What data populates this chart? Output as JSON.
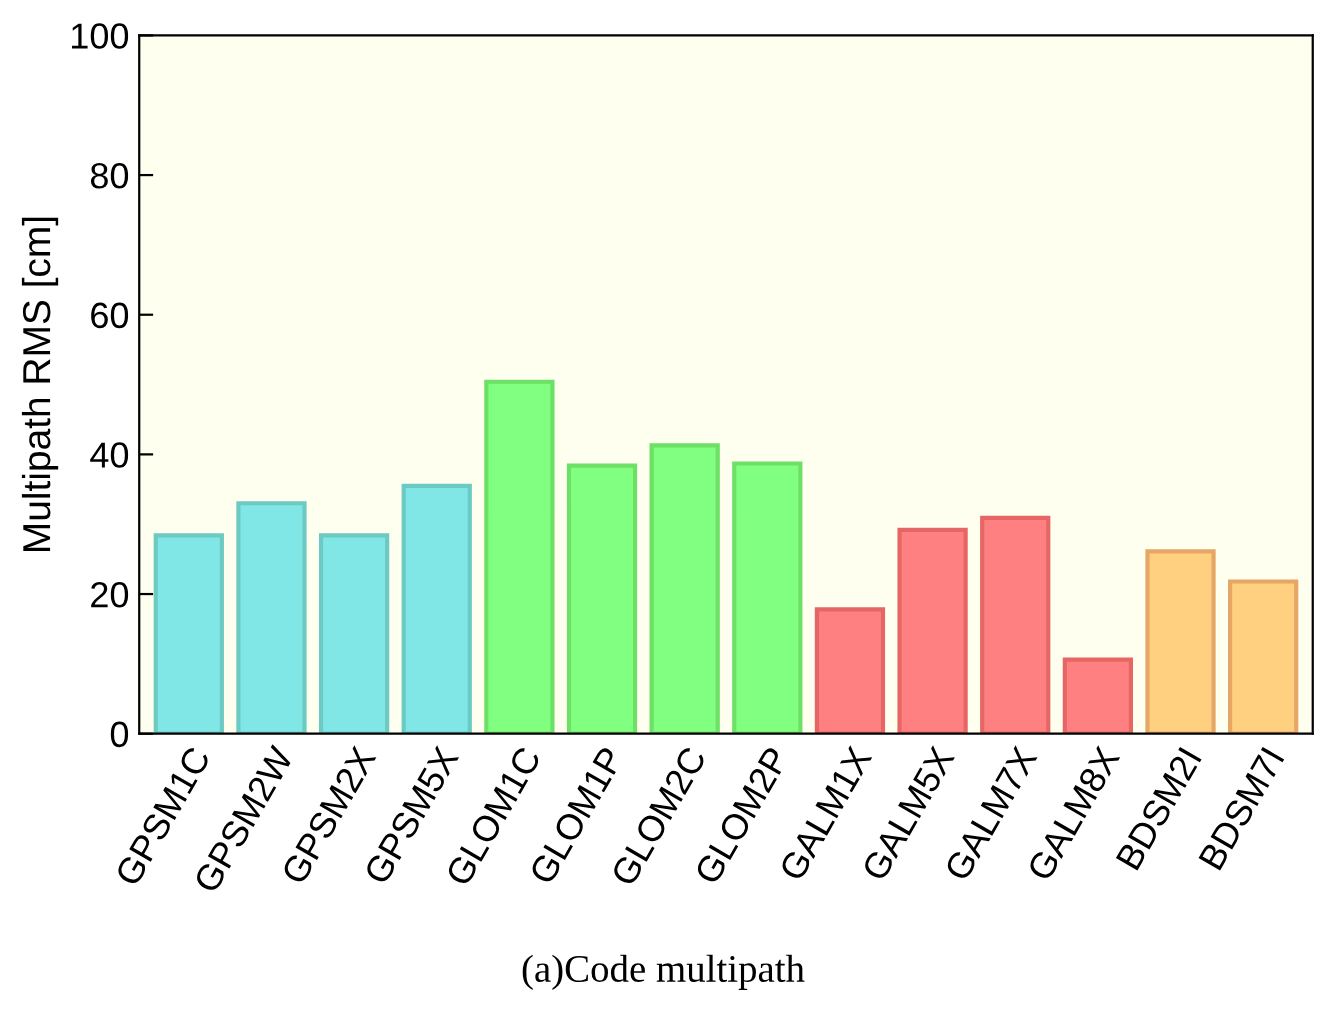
{
  "chart_data": {
    "type": "bar",
    "ylabel": "Multipath RMS [cm]",
    "categories": [
      "GPSM1C",
      "GPSM2W",
      "GPSM2X",
      "GPSM5X",
      "GLOM1C",
      "GLOM1P",
      "GLOM2C",
      "GLOM2P",
      "GALM1X",
      "GALM5X",
      "GALM7X",
      "GALM8X",
      "BDSM2I",
      "BDSM7I"
    ],
    "values": [
      28.4,
      33,
      28.4,
      35.5,
      50.4,
      38.4,
      41.3,
      38.7,
      17.8,
      29.2,
      30.9,
      10.6,
      26.1,
      21.8
    ],
    "colors": [
      "#80e6e6",
      "#80e6e6",
      "#80e6e6",
      "#80e6e6",
      "#80ff80",
      "#80ff80",
      "#80ff80",
      "#80ff80",
      "#ff8080",
      "#ff8080",
      "#ff8080",
      "#ff8080",
      "#ffd080",
      "#ffd080"
    ],
    "ylim": [
      0,
      100
    ],
    "yticks": [
      0,
      20,
      40,
      60,
      80,
      100
    ],
    "grid": false,
    "annotations": [
      "(a)Code multipath"
    ]
  }
}
